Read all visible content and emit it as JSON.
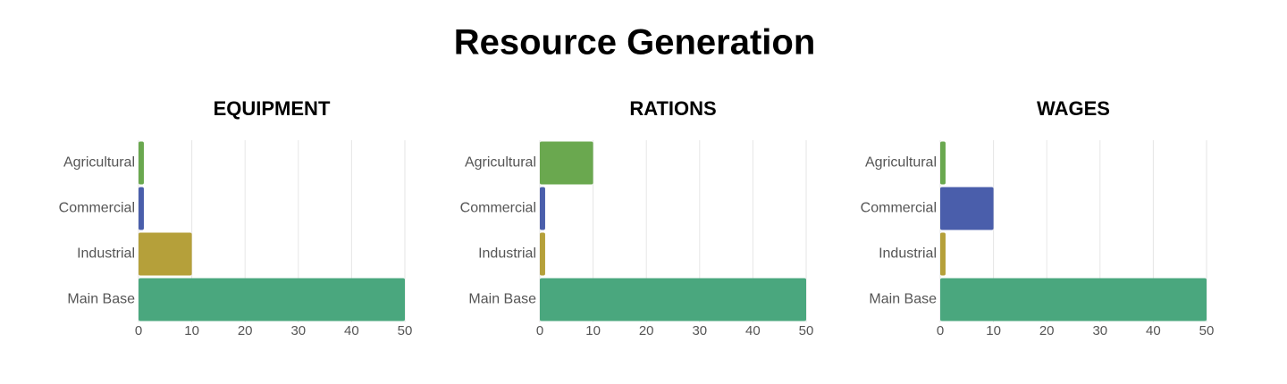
{
  "title": "Resource Generation",
  "chart_data": [
    {
      "type": "hbar",
      "title": "EQUIPMENT",
      "categories": [
        "Agricultural",
        "Commercial",
        "Industrial",
        "Main Base"
      ],
      "values": [
        1,
        1,
        10,
        50
      ],
      "colors": [
        "#6aa84f",
        "#4a5eab",
        "#b5a03a",
        "#4aa77e"
      ],
      "xlim": [
        0,
        50
      ],
      "xticks": [
        0,
        10,
        20,
        30,
        40,
        50
      ],
      "grid": true
    },
    {
      "type": "hbar",
      "title": "RATIONS",
      "categories": [
        "Agricultural",
        "Commercial",
        "Industrial",
        "Main Base"
      ],
      "values": [
        10,
        1,
        1,
        50
      ],
      "colors": [
        "#6aa84f",
        "#4a5eab",
        "#b5a03a",
        "#4aa77e"
      ],
      "xlim": [
        0,
        50
      ],
      "xticks": [
        0,
        10,
        20,
        30,
        40,
        50
      ],
      "grid": true
    },
    {
      "type": "hbar",
      "title": "WAGES",
      "categories": [
        "Agricultural",
        "Commercial",
        "Industrial",
        "Main Base"
      ],
      "values": [
        1,
        10,
        1,
        50
      ],
      "colors": [
        "#6aa84f",
        "#4a5eab",
        "#b5a03a",
        "#4aa77e"
      ],
      "xlim": [
        0,
        50
      ],
      "xticks": [
        0,
        10,
        20,
        30,
        40,
        50
      ],
      "grid": true
    }
  ]
}
